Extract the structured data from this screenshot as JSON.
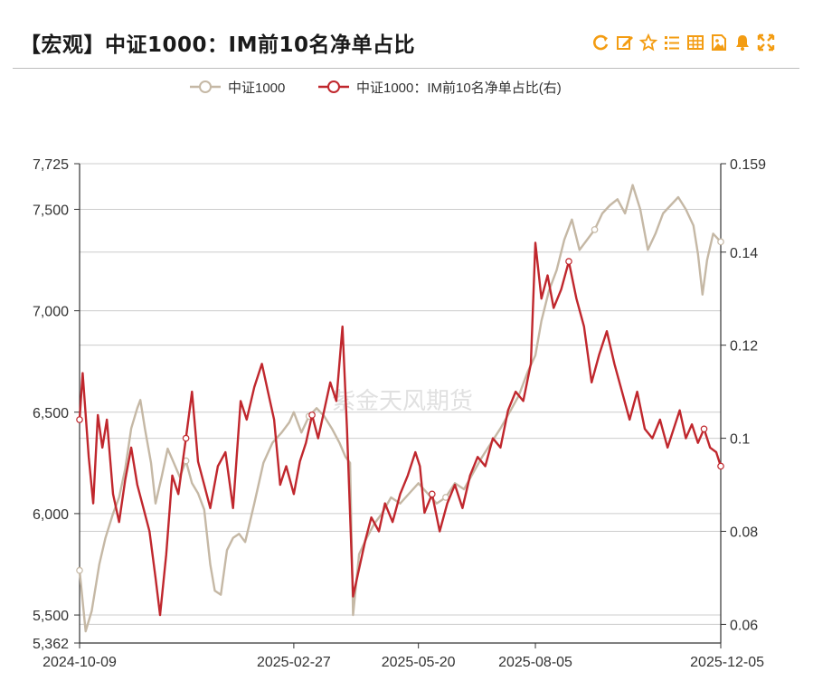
{
  "header": {
    "title": "【宏观】中证1000：IM前10名净单占比",
    "tools": [
      "refresh-icon",
      "edit-icon",
      "star-icon",
      "list-icon",
      "table-icon",
      "image-icon",
      "bell-icon",
      "fullscreen-icon"
    ]
  },
  "watermark": "紫金天风期货",
  "colors": {
    "series1": "#c5b8a5",
    "series2": "#c0272d",
    "accent": "#f39c12",
    "grid": "#cccccc"
  },
  "chart_data": {
    "type": "line",
    "legend_position": "top-center",
    "grid": true,
    "x_start": "2024-10-09",
    "x_end": "2025-12-05",
    "x_ticks": [
      "2024-10-09",
      "2025-02-27",
      "2025-05-20",
      "2025-08-05",
      "2025-12-05"
    ],
    "left_axis": {
      "ticks": [
        "7,725",
        "7,500",
        "7,000",
        "6,500",
        "6,000",
        "5,500",
        "5,362"
      ],
      "ylim": [
        5362,
        7725
      ]
    },
    "right_axis": {
      "ticks": [
        "0.159",
        "0.14",
        "0.12",
        "0.1",
        "0.08",
        "0.06"
      ],
      "ylim": [
        0.056,
        0.159
      ]
    },
    "series": [
      {
        "name": "中证1000",
        "axis": "left",
        "points": [
          [
            "2024-10-09",
            5720
          ],
          [
            "2024-10-13",
            5420
          ],
          [
            "2024-10-17",
            5520
          ],
          [
            "2024-10-22",
            5750
          ],
          [
            "2024-10-26",
            5880
          ],
          [
            "2024-10-31",
            6000
          ],
          [
            "2024-11-04",
            6080
          ],
          [
            "2024-11-08",
            6220
          ],
          [
            "2024-11-12",
            6420
          ],
          [
            "2024-11-16",
            6520
          ],
          [
            "2024-11-18",
            6560
          ],
          [
            "2024-11-21",
            6420
          ],
          [
            "2024-11-25",
            6250
          ],
          [
            "2024-11-28",
            6050
          ],
          [
            "2024-12-02",
            6180
          ],
          [
            "2024-12-06",
            6320
          ],
          [
            "2024-12-10",
            6250
          ],
          [
            "2024-12-14",
            6180
          ],
          [
            "2024-12-18",
            6260
          ],
          [
            "2024-12-22",
            6150
          ],
          [
            "2024-12-26",
            6100
          ],
          [
            "2024-12-30",
            6020
          ],
          [
            "2025-01-03",
            5750
          ],
          [
            "2025-01-06",
            5620
          ],
          [
            "2025-01-10",
            5600
          ],
          [
            "2025-01-14",
            5820
          ],
          [
            "2025-01-18",
            5880
          ],
          [
            "2025-01-22",
            5900
          ],
          [
            "2025-01-26",
            5860
          ],
          [
            "2025-02-01",
            6050
          ],
          [
            "2025-02-07",
            6250
          ],
          [
            "2025-02-13",
            6350
          ],
          [
            "2025-02-19",
            6400
          ],
          [
            "2025-02-24",
            6450
          ],
          [
            "2025-02-27",
            6500
          ],
          [
            "2025-03-04",
            6400
          ],
          [
            "2025-03-09",
            6480
          ],
          [
            "2025-03-14",
            6520
          ],
          [
            "2025-03-19",
            6480
          ],
          [
            "2025-03-24",
            6420
          ],
          [
            "2025-03-29",
            6350
          ],
          [
            "2025-04-02",
            6280
          ],
          [
            "2025-04-05",
            6250
          ],
          [
            "2025-04-07",
            5500
          ],
          [
            "2025-04-11",
            5800
          ],
          [
            "2025-04-16",
            5880
          ],
          [
            "2025-04-21",
            5950
          ],
          [
            "2025-04-26",
            6000
          ],
          [
            "2025-05-02",
            6080
          ],
          [
            "2025-05-08",
            6050
          ],
          [
            "2025-05-14",
            6100
          ],
          [
            "2025-05-20",
            6150
          ],
          [
            "2025-05-26",
            6100
          ],
          [
            "2025-06-01",
            6050
          ],
          [
            "2025-06-07",
            6080
          ],
          [
            "2025-06-13",
            6150
          ],
          [
            "2025-06-19",
            6120
          ],
          [
            "2025-06-25",
            6200
          ],
          [
            "2025-07-01",
            6280
          ],
          [
            "2025-07-07",
            6350
          ],
          [
            "2025-07-13",
            6420
          ],
          [
            "2025-07-19",
            6500
          ],
          [
            "2025-07-25",
            6580
          ],
          [
            "2025-07-31",
            6700
          ],
          [
            "2025-08-05",
            6780
          ],
          [
            "2025-08-09",
            6950
          ],
          [
            "2025-08-14",
            7100
          ],
          [
            "2025-08-19",
            7200
          ],
          [
            "2025-08-24",
            7350
          ],
          [
            "2025-08-29",
            7450
          ],
          [
            "2025-09-03",
            7300
          ],
          [
            "2025-09-08",
            7350
          ],
          [
            "2025-09-13",
            7400
          ],
          [
            "2025-09-18",
            7480
          ],
          [
            "2025-09-23",
            7520
          ],
          [
            "2025-09-28",
            7550
          ],
          [
            "2025-10-03",
            7480
          ],
          [
            "2025-10-08",
            7620
          ],
          [
            "2025-10-13",
            7500
          ],
          [
            "2025-10-18",
            7300
          ],
          [
            "2025-10-23",
            7380
          ],
          [
            "2025-10-28",
            7480
          ],
          [
            "2025-11-02",
            7520
          ],
          [
            "2025-11-07",
            7560
          ],
          [
            "2025-11-12",
            7500
          ],
          [
            "2025-11-17",
            7420
          ],
          [
            "2025-11-20",
            7280
          ],
          [
            "2025-11-23",
            7080
          ],
          [
            "2025-11-26",
            7250
          ],
          [
            "2025-11-30",
            7380
          ],
          [
            "2025-12-05",
            7340
          ]
        ]
      },
      {
        "name": "中证1000：IM前10名净单占比(右)",
        "axis": "right",
        "points": [
          [
            "2024-10-09",
            0.104
          ],
          [
            "2024-10-11",
            0.114
          ],
          [
            "2024-10-15",
            0.096
          ],
          [
            "2024-10-18",
            0.086
          ],
          [
            "2024-10-21",
            0.105
          ],
          [
            "2024-10-24",
            0.098
          ],
          [
            "2024-10-27",
            0.104
          ],
          [
            "2024-10-31",
            0.088
          ],
          [
            "2024-11-04",
            0.082
          ],
          [
            "2024-11-08",
            0.091
          ],
          [
            "2024-11-12",
            0.098
          ],
          [
            "2024-11-16",
            0.09
          ],
          [
            "2024-11-20",
            0.085
          ],
          [
            "2024-11-24",
            0.08
          ],
          [
            "2024-11-28",
            0.07
          ],
          [
            "2024-12-01",
            0.062
          ],
          [
            "2024-12-05",
            0.075
          ],
          [
            "2024-12-09",
            0.092
          ],
          [
            "2024-12-13",
            0.088
          ],
          [
            "2024-12-18",
            0.1
          ],
          [
            "2024-12-22",
            0.11
          ],
          [
            "2024-12-26",
            0.095
          ],
          [
            "2024-12-30",
            0.09
          ],
          [
            "2025-01-03",
            0.085
          ],
          [
            "2025-01-08",
            0.094
          ],
          [
            "2025-01-13",
            0.097
          ],
          [
            "2025-01-18",
            0.085
          ],
          [
            "2025-01-23",
            0.108
          ],
          [
            "2025-01-27",
            0.104
          ],
          [
            "2025-02-01",
            0.111
          ],
          [
            "2025-02-06",
            0.116
          ],
          [
            "2025-02-10",
            0.11
          ],
          [
            "2025-02-14",
            0.104
          ],
          [
            "2025-02-18",
            0.09
          ],
          [
            "2025-02-22",
            0.094
          ],
          [
            "2025-02-27",
            0.088
          ],
          [
            "2025-03-03",
            0.095
          ],
          [
            "2025-03-07",
            0.099
          ],
          [
            "2025-03-11",
            0.105
          ],
          [
            "2025-03-15",
            0.1
          ],
          [
            "2025-03-19",
            0.106
          ],
          [
            "2025-03-23",
            0.112
          ],
          [
            "2025-03-27",
            0.108
          ],
          [
            "2025-03-31",
            0.124
          ],
          [
            "2025-04-03",
            0.102
          ],
          [
            "2025-04-07",
            0.066
          ],
          [
            "2025-04-11",
            0.072
          ],
          [
            "2025-04-15",
            0.078
          ],
          [
            "2025-04-19",
            0.083
          ],
          [
            "2025-04-24",
            0.08
          ],
          [
            "2025-04-28",
            0.086
          ],
          [
            "2025-05-03",
            0.082
          ],
          [
            "2025-05-08",
            0.088
          ],
          [
            "2025-05-13",
            0.092
          ],
          [
            "2025-05-18",
            0.097
          ],
          [
            "2025-05-21",
            0.094
          ],
          [
            "2025-05-24",
            0.084
          ],
          [
            "2025-05-29",
            0.088
          ],
          [
            "2025-06-03",
            0.08
          ],
          [
            "2025-06-08",
            0.086
          ],
          [
            "2025-06-13",
            0.09
          ],
          [
            "2025-06-18",
            0.085
          ],
          [
            "2025-06-23",
            0.092
          ],
          [
            "2025-06-28",
            0.096
          ],
          [
            "2025-07-03",
            0.094
          ],
          [
            "2025-07-08",
            0.1
          ],
          [
            "2025-07-13",
            0.098
          ],
          [
            "2025-07-18",
            0.106
          ],
          [
            "2025-07-23",
            0.11
          ],
          [
            "2025-07-28",
            0.108
          ],
          [
            "2025-08-02",
            0.116
          ],
          [
            "2025-08-05",
            0.142
          ],
          [
            "2025-08-09",
            0.13
          ],
          [
            "2025-08-13",
            0.135
          ],
          [
            "2025-08-17",
            0.128
          ],
          [
            "2025-08-22",
            0.132
          ],
          [
            "2025-08-27",
            0.138
          ],
          [
            "2025-09-01",
            0.13
          ],
          [
            "2025-09-06",
            0.124
          ],
          [
            "2025-09-11",
            0.112
          ],
          [
            "2025-09-16",
            0.118
          ],
          [
            "2025-09-21",
            0.123
          ],
          [
            "2025-09-26",
            0.116
          ],
          [
            "2025-10-01",
            0.11
          ],
          [
            "2025-10-06",
            0.104
          ],
          [
            "2025-10-11",
            0.11
          ],
          [
            "2025-10-16",
            0.102
          ],
          [
            "2025-10-21",
            0.1
          ],
          [
            "2025-10-26",
            0.104
          ],
          [
            "2025-10-31",
            0.098
          ],
          [
            "2025-11-04",
            0.102
          ],
          [
            "2025-11-08",
            0.106
          ],
          [
            "2025-11-12",
            0.1
          ],
          [
            "2025-11-16",
            0.103
          ],
          [
            "2025-11-20",
            0.099
          ],
          [
            "2025-11-24",
            0.102
          ],
          [
            "2025-11-28",
            0.098
          ],
          [
            "2025-12-02",
            0.097
          ],
          [
            "2025-12-05",
            0.094
          ]
        ]
      }
    ]
  }
}
